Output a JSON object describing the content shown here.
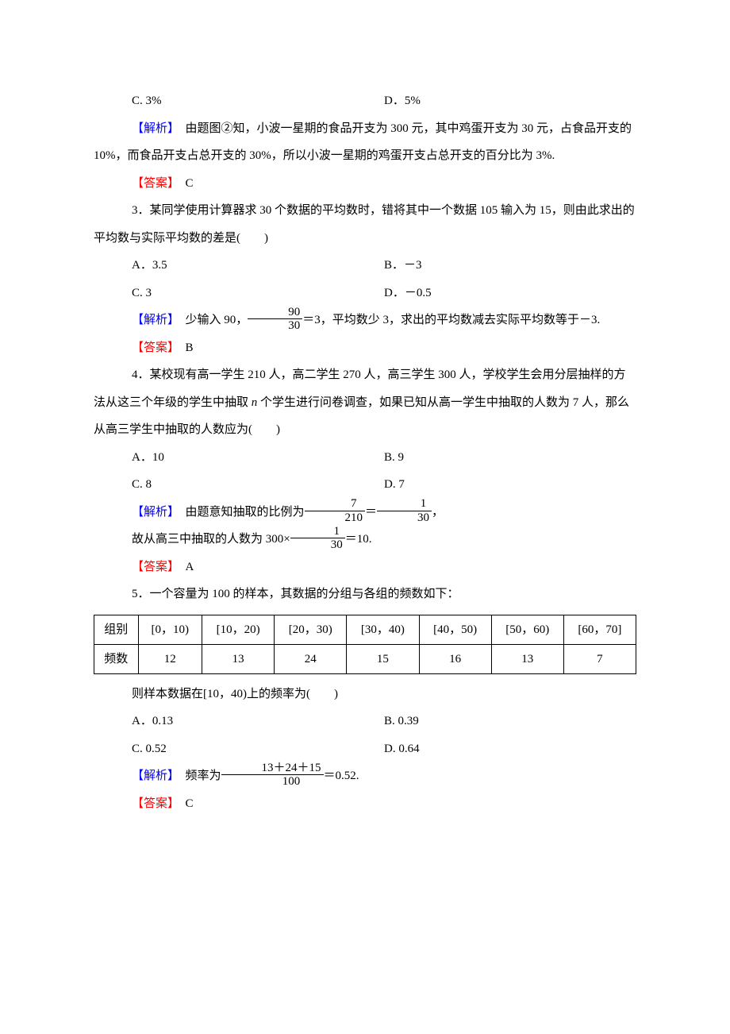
{
  "q2_cont": {
    "opts": {
      "c": "C. 3%",
      "d": "D．5%"
    },
    "expl_label": "【解析】",
    "expl_text": "　由题图②知，小波一星期的食品开支为 300 元，其中鸡蛋开支为 30 元，占食品开支的 10%，而食品开支占总开支的 30%，所以小波一星期的鸡蛋开支占总开支的百分比为 3%.",
    "ans_label": "【答案】",
    "ans": "　C"
  },
  "q3": {
    "stem_a": "3．某同学使用计算器求 30 个数据的平均数时，错将其中一个数据 105 输入为 15，则由此求出的平均数与实际平均数的差是(　　)",
    "opts": {
      "a": "A．3.5",
      "b": "B．－3",
      "c": "C. 3",
      "d": "D．－0.5"
    },
    "expl_label": "【解析】",
    "expl_pre": "　少输入 90，",
    "frac": {
      "num": "90",
      "den": "30"
    },
    "expl_post": "＝3，平均数少 3，求出的平均数减去实际平均数等于－3.",
    "ans_label": "【答案】",
    "ans": "　B"
  },
  "q4": {
    "stem": "4．某校现有高一学生 210 人，高二学生 270 人，高三学生 300 人，学校学生会用分层抽样的方法从这三个年级的学生中抽取 n 个学生进行问卷调查，如果已知从高一学生中抽取的人数为 7 人，那么从高三学生中抽取的人数应为(　　)",
    "opts": {
      "a": "A．10",
      "b": "B. 9",
      "c": "C. 8",
      "d": "D. 7"
    },
    "expl_label": "【解析】",
    "expl_pre": "　由题意知抽取的比例为",
    "f1": {
      "num": "7",
      "den": "210"
    },
    "eq": "＝",
    "f2": {
      "num": "1",
      "den": "30"
    },
    "comma": "，",
    "line2_pre": "故从高三中抽取的人数为 300×",
    "f3": {
      "num": "1",
      "den": "30"
    },
    "line2_post": "＝10.",
    "ans_label": "【答案】",
    "ans": "　A"
  },
  "q5": {
    "stem": "5．一个容量为 100 的样本，其数据的分组与各组的频数如下：",
    "table": {
      "header": [
        "组别",
        "[0，10)",
        "[10，20)",
        "[20，30)",
        "[30，40)",
        "[40，50)",
        "[50，60)",
        "[60，70]"
      ],
      "row": [
        "频数",
        "12",
        "13",
        "24",
        "15",
        "16",
        "13",
        "7"
      ]
    },
    "post": "则样本数据在[10，40)上的频率为(　　)",
    "opts": {
      "a": "A．0.13",
      "b": "B. 0.39",
      "c": "C. 0.52",
      "d": "D. 0.64"
    },
    "expl_label": "【解析】",
    "expl_pre": "　频率为",
    "frac": {
      "num": "13＋24＋15",
      "den": "100"
    },
    "expl_post": "＝0.52.",
    "ans_label": "【答案】",
    "ans": "　C"
  }
}
